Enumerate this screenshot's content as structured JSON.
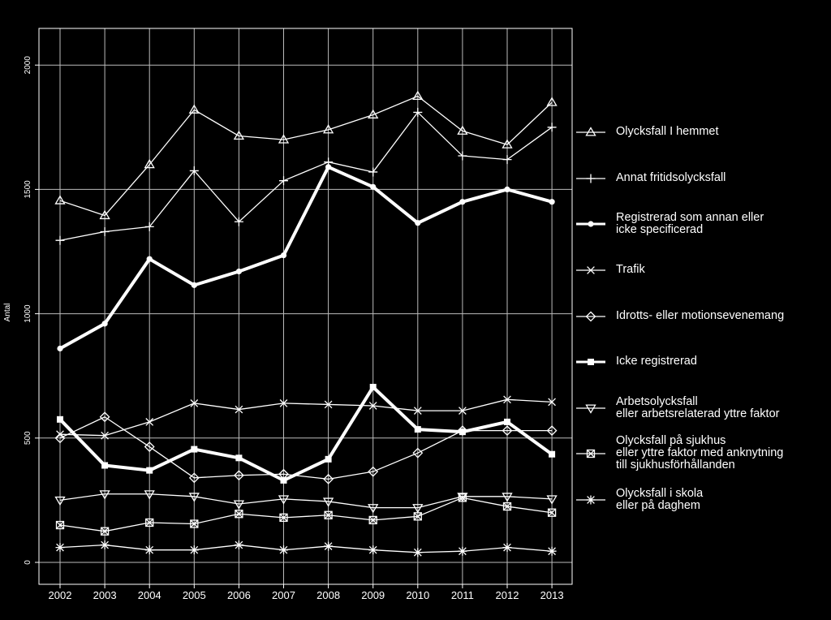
{
  "chart_data": {
    "type": "line",
    "title": "",
    "xlabel": "",
    "ylabel": "Antal",
    "x": [
      "2002",
      "2003",
      "2004",
      "2005",
      "2006",
      "2007",
      "2008",
      "2009",
      "2010",
      "2011",
      "2012",
      "2013"
    ],
    "y_ticks": [
      "0",
      "500",
      "1000",
      "1500",
      "2000"
    ],
    "ylim": [
      -90,
      2150
    ],
    "grid": true,
    "legend_position": "right",
    "series": [
      {
        "name": "Olycksfall I hemmet",
        "marker": "triangle-up",
        "bold": false,
        "values": [
          1455,
          1395,
          1600,
          1820,
          1715,
          1700,
          1740,
          1800,
          1875,
          1735,
          1680,
          1850
        ]
      },
      {
        "name": "Annat fritidsolycksfall",
        "marker": "plus",
        "bold": false,
        "values": [
          1295,
          1330,
          1350,
          1575,
          1370,
          1535,
          1610,
          1570,
          1810,
          1635,
          1620,
          1750
        ]
      },
      {
        "name": "Registrerad som annan eller\nicke specificerad",
        "marker": "filled-circle",
        "bold": true,
        "values": [
          860,
          960,
          1220,
          1115,
          1170,
          1235,
          1590,
          1510,
          1365,
          1450,
          1500,
          1450
        ]
      },
      {
        "name": "Trafik",
        "marker": "x",
        "bold": false,
        "values": [
          515,
          510,
          565,
          640,
          615,
          640,
          635,
          630,
          610,
          610,
          655,
          645
        ]
      },
      {
        "name": "Idrotts- eller motionsevenemang",
        "marker": "diamond",
        "bold": false,
        "values": [
          500,
          585,
          465,
          340,
          350,
          355,
          335,
          365,
          440,
          530,
          530,
          530
        ]
      },
      {
        "name": "Icke registrerad",
        "marker": "filled-square",
        "bold": true,
        "values": [
          575,
          390,
          370,
          455,
          420,
          330,
          415,
          705,
          535,
          525,
          565,
          435
        ]
      },
      {
        "name": "Arbetsolycksfall\neller arbetsrelaterad yttre faktor",
        "marker": "triangle-down",
        "bold": false,
        "values": [
          250,
          275,
          275,
          265,
          235,
          255,
          245,
          220,
          220,
          265,
          265,
          255
        ]
      },
      {
        "name": "Olycksfall på sjukhus\neller yttre faktor med anknytning\ntill sjukhusförhållanden",
        "marker": "boxed-x",
        "bold": false,
        "values": [
          150,
          125,
          160,
          155,
          195,
          180,
          190,
          170,
          185,
          260,
          225,
          200
        ]
      },
      {
        "name": "Olycksfall i skola\neller på daghem",
        "marker": "asterisk",
        "bold": false,
        "values": [
          60,
          70,
          50,
          50,
          70,
          50,
          65,
          50,
          40,
          45,
          60,
          45
        ]
      }
    ]
  }
}
